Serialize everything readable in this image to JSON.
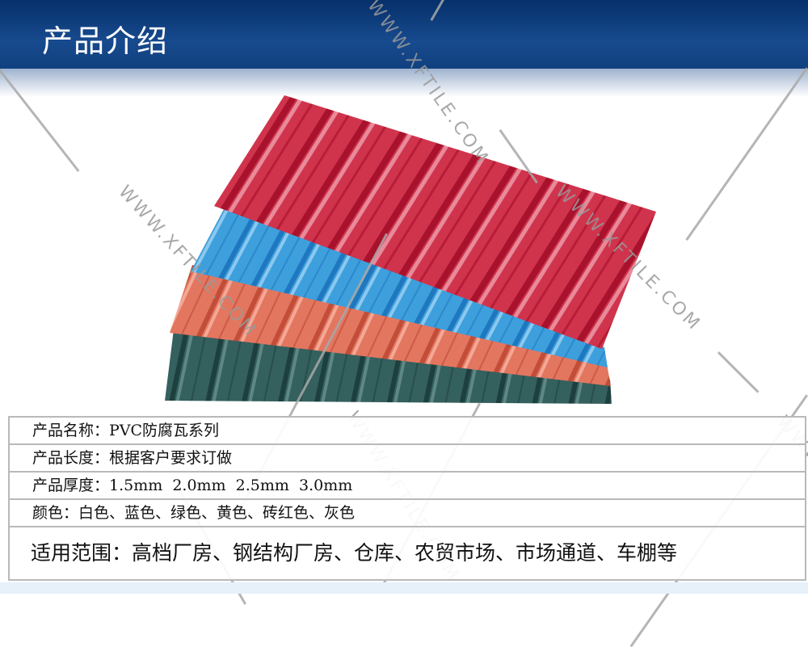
{
  "header": {
    "title": "产品介绍"
  },
  "watermark": "WWW.XFTILE.COM",
  "product_colors": {
    "red": "#c8263f",
    "blue": "#3a9ad8",
    "salmon": "#e0705e",
    "green": "#2e5a58"
  },
  "specs": [
    {
      "text": "产品名称：PVC防腐瓦系列"
    },
    {
      "text": "产品长度：根据客户要求订做"
    },
    {
      "text": "产品厚度：1.5mm  2.0mm  2.5mm  3.0mm"
    },
    {
      "text": "颜色：白色、蓝色、绿色、黄色、砖红色、灰色"
    },
    {
      "text": "适用范围：高档厂房、钢结构厂房、仓库、农贸市场、市场通道、车棚等"
    }
  ]
}
